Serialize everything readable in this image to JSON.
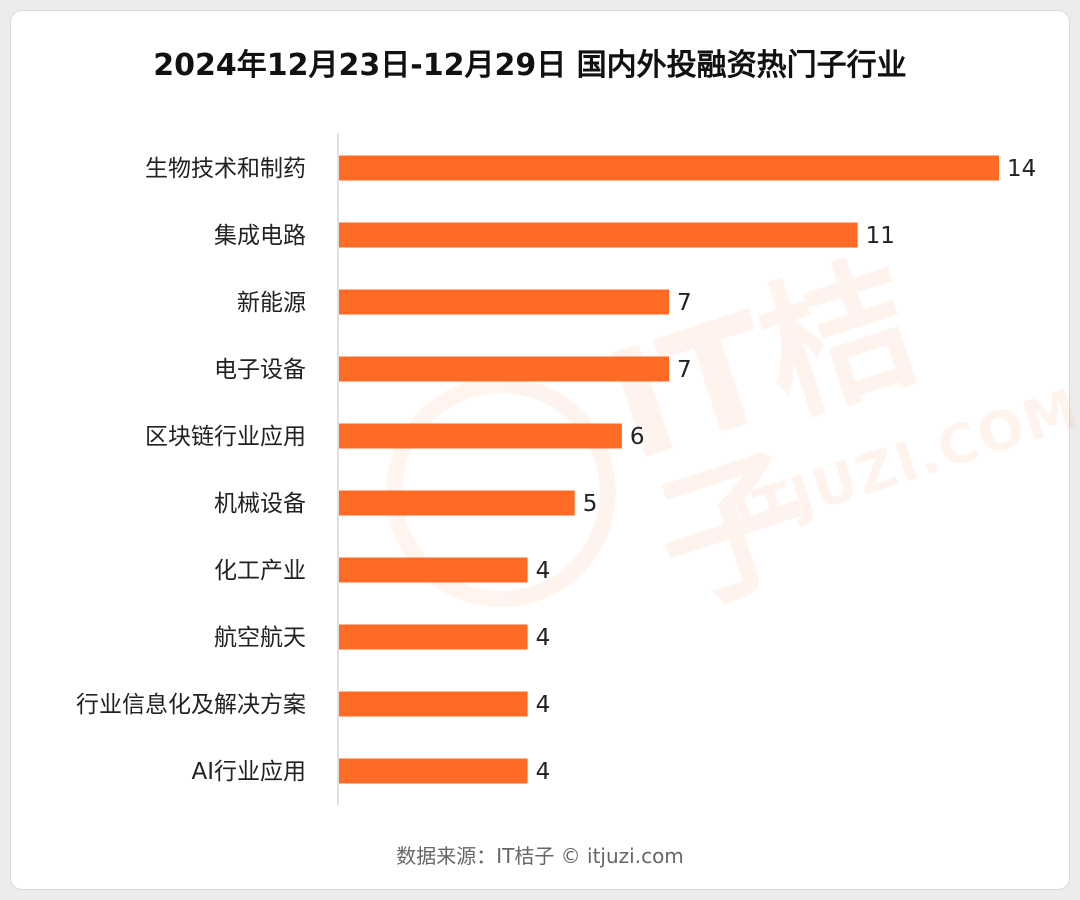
{
  "chart_data": {
    "type": "bar",
    "orientation": "horizontal",
    "title": "2024年12月23日-12月29日 国内外投融资热门子行业",
    "categories": [
      "生物技术和制药",
      "集成电路",
      "新能源",
      "电子设备",
      "区块链行业应用",
      "机械设备",
      "化工产业",
      "航空航天",
      "行业信息化及解决方案",
      "AI行业应用"
    ],
    "values": [
      14,
      11,
      7,
      7,
      6,
      5,
      4,
      4,
      4,
      4
    ],
    "xlim": [
      0,
      14
    ],
    "bar_color": "#ff6a25",
    "data_labels": true,
    "grid": false
  },
  "watermark": {
    "text": "IT桔子",
    "subtext": "ITJUZI.COM",
    "color": "#ff6a13"
  },
  "footer": {
    "source": "数据来源：IT桔子 © itjuzi.com"
  }
}
